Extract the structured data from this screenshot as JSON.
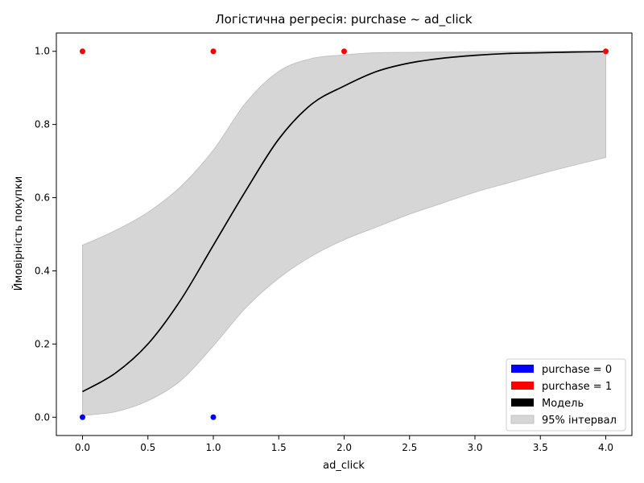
{
  "chart_data": {
    "type": "scatter",
    "title": "Логістична регресія: purchase ~ ad_click",
    "xlabel": "ad_click",
    "ylabel": "Ймовірність покупки",
    "xlim": [
      -0.2,
      4.2
    ],
    "ylim": [
      -0.05,
      1.05
    ],
    "xticks": [
      0.0,
      0.5,
      1.0,
      1.5,
      2.0,
      2.5,
      3.0,
      3.5,
      4.0
    ],
    "xtick_labels": [
      "0.0",
      "0.5",
      "1.0",
      "1.5",
      "2.0",
      "2.5",
      "3.0",
      "3.5",
      "4.0"
    ],
    "yticks": [
      0.0,
      0.2,
      0.4,
      0.6,
      0.8,
      1.0
    ],
    "ytick_labels": [
      "0.0",
      "0.2",
      "0.4",
      "0.6",
      "0.8",
      "1.0"
    ],
    "grid": false,
    "legend_position": "bottom-right",
    "series": [
      {
        "name": "purchase = 0",
        "kind": "points",
        "color": "#0000ff",
        "points": [
          {
            "x": 0,
            "y": 0
          },
          {
            "x": 1,
            "y": 0
          }
        ]
      },
      {
        "name": "purchase = 1",
        "kind": "points",
        "color": "#ff0000",
        "points": [
          {
            "x": 0,
            "y": 1
          },
          {
            "x": 1,
            "y": 1
          },
          {
            "x": 2,
            "y": 1
          },
          {
            "x": 4,
            "y": 1
          }
        ]
      },
      {
        "name": "Модель",
        "kind": "line",
        "color": "#000000",
        "x": [
          0.0,
          0.25,
          0.5,
          0.75,
          1.0,
          1.25,
          1.5,
          1.75,
          2.0,
          2.25,
          2.5,
          2.75,
          3.0,
          3.25,
          3.5,
          3.75,
          4.0
        ],
        "y": [
          0.07,
          0.12,
          0.2,
          0.32,
          0.47,
          0.62,
          0.76,
          0.855,
          0.905,
          0.945,
          0.968,
          0.981,
          0.989,
          0.994,
          0.996,
          0.998,
          0.999
        ]
      },
      {
        "name": "95% інтервал",
        "kind": "band",
        "color": "#d6d6d6",
        "x": [
          0.0,
          0.25,
          0.5,
          0.75,
          1.0,
          1.25,
          1.5,
          1.75,
          2.0,
          2.25,
          2.5,
          2.75,
          3.0,
          3.25,
          3.5,
          3.75,
          4.0
        ],
        "lower": [
          0.005,
          0.015,
          0.045,
          0.1,
          0.195,
          0.3,
          0.38,
          0.44,
          0.485,
          0.52,
          0.555,
          0.585,
          0.615,
          0.64,
          0.665,
          0.688,
          0.71
        ],
        "upper": [
          0.47,
          0.51,
          0.56,
          0.63,
          0.73,
          0.86,
          0.945,
          0.98,
          0.99,
          0.996,
          0.997,
          0.998,
          0.999,
          0.999,
          1.0,
          1.0,
          1.0
        ]
      }
    ]
  }
}
